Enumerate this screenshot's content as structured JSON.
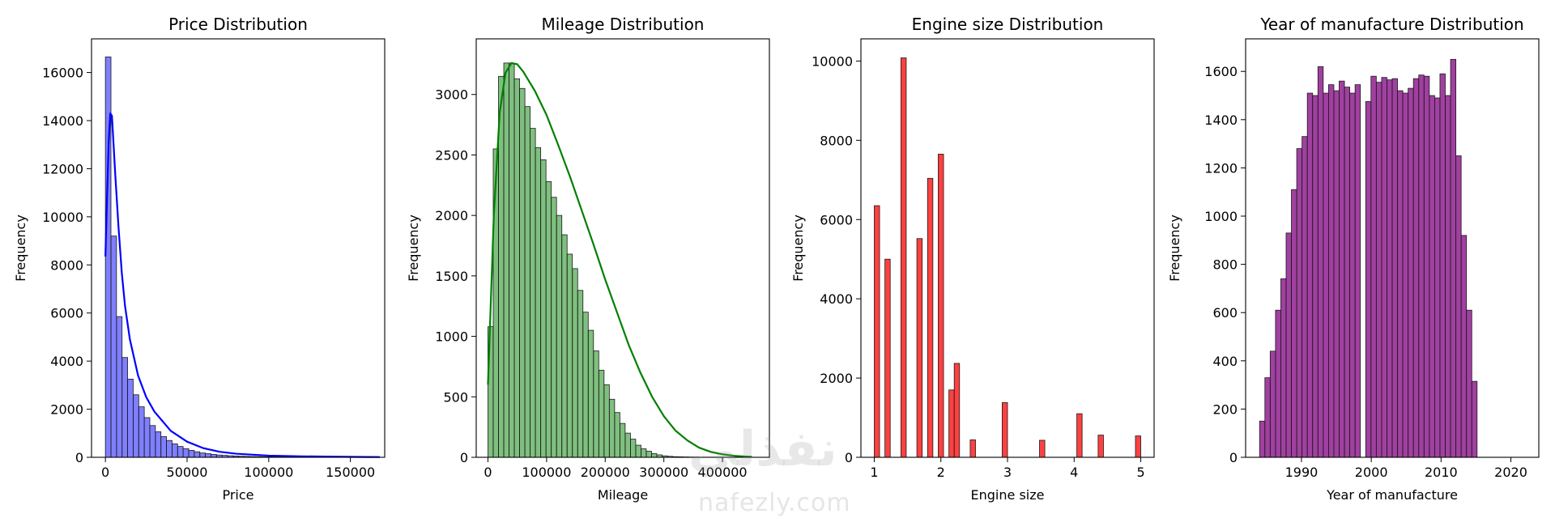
{
  "watermark": {
    "logo": "نفذلي",
    "url": "nafezly.com"
  },
  "chart_data": [
    {
      "type": "bar",
      "title": "Price Distribution",
      "xlabel": "Price",
      "ylabel": "Frequency",
      "xlim": [
        -8500,
        171000
      ],
      "ylim": [
        0,
        17400
      ],
      "xticks": [
        0,
        50000,
        100000,
        150000
      ],
      "xtick_labels": [
        "0",
        "50000",
        "100000",
        "150000"
      ],
      "yticks": [
        0,
        2000,
        4000,
        6000,
        8000,
        10000,
        12000,
        14000,
        16000
      ],
      "bin_start": 0,
      "bin_width": 3400,
      "values": [
        16650,
        9200,
        5850,
        4150,
        3250,
        2600,
        2100,
        1650,
        1320,
        1060,
        860,
        700,
        560,
        450,
        360,
        290,
        230,
        180,
        150,
        120,
        95,
        80,
        65,
        55,
        45,
        38,
        32,
        28,
        24,
        20,
        18,
        16,
        14,
        12,
        10,
        9,
        8,
        7,
        6,
        6,
        5,
        5,
        4,
        4,
        3,
        3,
        3,
        2,
        2,
        2
      ],
      "fill_color": "#0000ff",
      "fill_opacity": 0.5,
      "kde": {
        "color": "#0000ff",
        "x": [
          0,
          1000,
          2000,
          3000,
          4000,
          5000,
          6000,
          8000,
          10000,
          12000,
          15000,
          20000,
          25000,
          30000,
          40000,
          50000,
          60000,
          70000,
          80000,
          100000,
          120000,
          140000,
          160000,
          168000
        ],
        "y": [
          8350,
          10800,
          13100,
          14300,
          14200,
          13000,
          11800,
          9600,
          7700,
          6300,
          4900,
          3400,
          2500,
          1900,
          1100,
          650,
          380,
          230,
          150,
          70,
          40,
          25,
          12,
          10
        ]
      }
    },
    {
      "type": "bar",
      "title": "Mileage Distribution",
      "xlabel": "Mileage",
      "ylabel": "Frequency",
      "xlim": [
        -20000,
        480000
      ],
      "ylim": [
        0,
        3460
      ],
      "xticks": [
        0,
        100000,
        200000,
        300000,
        400000
      ],
      "xtick_labels": [
        "0",
        "100000",
        "200000",
        "300000",
        "400000"
      ],
      "yticks": [
        0,
        500,
        1000,
        1500,
        2000,
        2500,
        3000
      ],
      "bin_start": 0,
      "bin_width": 9000,
      "values": [
        1080,
        2550,
        3150,
        3260,
        3260,
        3130,
        3050,
        2900,
        2720,
        2560,
        2460,
        2280,
        2150,
        2000,
        1840,
        1680,
        1560,
        1380,
        1200,
        1050,
        880,
        720,
        600,
        480,
        370,
        280,
        200,
        150,
        100,
        70,
        50,
        30,
        20,
        12,
        8,
        5,
        4,
        3,
        2,
        2,
        1,
        1,
        1,
        1,
        1,
        1,
        1,
        1,
        1,
        1
      ],
      "fill_color": "#008000",
      "fill_opacity": 0.5,
      "kde": {
        "color": "#008000",
        "x": [
          0,
          5000,
          10000,
          20000,
          30000,
          40000,
          50000,
          60000,
          80000,
          100000,
          120000,
          140000,
          160000,
          180000,
          200000,
          220000,
          240000,
          260000,
          280000,
          300000,
          320000,
          340000,
          360000,
          380000,
          400000,
          420000,
          440000,
          450000
        ],
        "y": [
          600,
          1300,
          2000,
          2850,
          3180,
          3260,
          3250,
          3190,
          3030,
          2830,
          2580,
          2320,
          2040,
          1760,
          1470,
          1200,
          930,
          700,
          500,
          340,
          220,
          140,
          80,
          45,
          25,
          12,
          6,
          4
        ]
      }
    },
    {
      "type": "bar",
      "title": "Engine size Distribution",
      "xlabel": "Engine size",
      "ylabel": "Frequency",
      "xlim": [
        0.8,
        5.2
      ],
      "ylim": [
        0,
        10560
      ],
      "xticks": [
        1,
        2,
        3,
        4,
        5
      ],
      "xtick_labels": [
        "1",
        "2",
        "3",
        "4",
        "5"
      ],
      "yticks": [
        0,
        2000,
        4000,
        6000,
        8000,
        10000
      ],
      "bin_start": 1.0,
      "bin_width": 0.08,
      "values": [
        6350,
        0,
        5000,
        0,
        0,
        10080,
        0,
        0,
        5520,
        0,
        7040,
        0,
        7650,
        0,
        1700,
        2370,
        0,
        0,
        440,
        0,
        0,
        0,
        0,
        0,
        1380,
        0,
        0,
        0,
        0,
        0,
        0,
        430,
        0,
        0,
        0,
        0,
        0,
        0,
        1100,
        0,
        0,
        0,
        560,
        0,
        0,
        0,
        0,
        0,
        0,
        540
      ],
      "fill_color": "#ff0000",
      "fill_opacity": 0.75
    },
    {
      "type": "bar",
      "title": "Year of manufacture Distribution",
      "xlabel": "Year of manufacture",
      "ylabel": "Frequency",
      "xlim": [
        1982,
        2024
      ],
      "ylim": [
        0,
        1735
      ],
      "xticks": [
        1990,
        2000,
        2010,
        2020
      ],
      "xtick_labels": [
        "1990",
        "2000",
        "2010",
        "2020"
      ],
      "yticks": [
        0,
        200,
        400,
        600,
        800,
        1000,
        1200,
        1400,
        1600
      ],
      "bin_start": 1984,
      "bin_width": 0.76,
      "values": [
        150,
        330,
        440,
        610,
        740,
        930,
        1110,
        1280,
        1330,
        1510,
        1500,
        1620,
        1510,
        1545,
        1520,
        1560,
        1535,
        1510,
        1545,
        0,
        1475,
        1580,
        1555,
        1575,
        1565,
        1570,
        1520,
        1510,
        1530,
        1570,
        1585,
        1580,
        1500,
        1490,
        1590,
        1500,
        1650,
        1250,
        920,
        610,
        315
      ],
      "fill_color": "#800080",
      "fill_opacity": 0.75
    }
  ]
}
